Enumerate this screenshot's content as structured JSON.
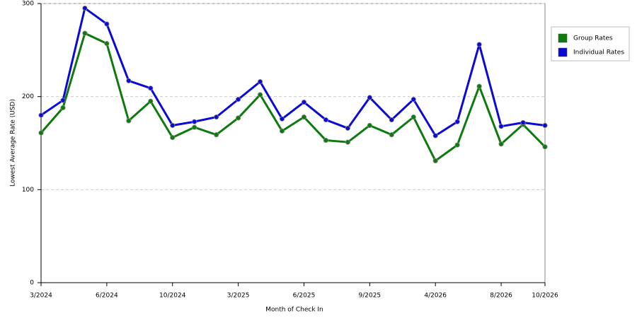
{
  "chart_data": {
    "type": "line",
    "x_label": "Month of Check In",
    "y_label": "Lowest Average Rate (USD)",
    "categories": [
      "3/2024",
      null,
      null,
      "6/2024",
      null,
      null,
      "10/2024",
      null,
      null,
      "3/2025",
      null,
      null,
      "6/2025",
      null,
      null,
      "9/2025",
      null,
      null,
      "4/2026",
      null,
      null,
      "8/2026",
      null,
      "10/2026"
    ],
    "series": [
      {
        "name": "Group Rates",
        "color": "#0e7a0e",
        "values": [
          161,
          188,
          268,
          257,
          174,
          195,
          156,
          167,
          159,
          177,
          202,
          163,
          178,
          153,
          151,
          169,
          159,
          178,
          131,
          148,
          211,
          149,
          170,
          146
        ]
      },
      {
        "name": "Individual Rates",
        "color": "#0a0ad4",
        "values": [
          180,
          196,
          295,
          278,
          217,
          209,
          169,
          173,
          178,
          197,
          216,
          176,
          194,
          175,
          166,
          199,
          175,
          197,
          158,
          173,
          256,
          168,
          172,
          169
        ]
      }
    ],
    "ylim": [
      0,
      300
    ],
    "yticks": [
      0,
      100,
      200,
      300
    ],
    "grid": true,
    "legend": "right"
  }
}
